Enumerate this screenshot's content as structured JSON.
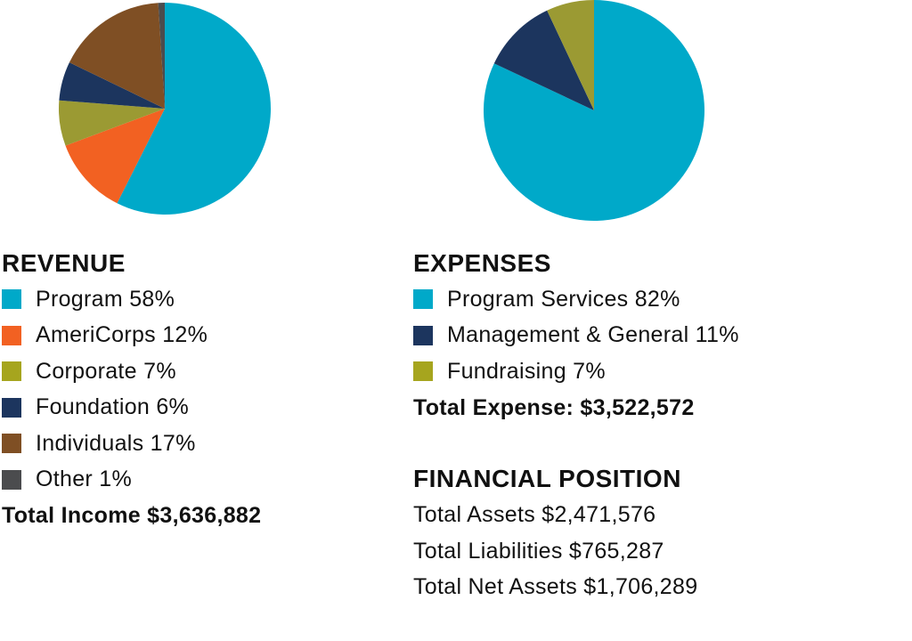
{
  "chart_data": [
    {
      "type": "pie",
      "title": "REVENUE",
      "categories": [
        "Program",
        "AmeriCorps",
        "Corporate",
        "Foundation",
        "Individuals",
        "Other"
      ],
      "values": [
        58,
        12,
        7,
        6,
        17,
        1
      ],
      "unit": "%",
      "colors": [
        "#00a9c9",
        "#f26122",
        "#9b9a33",
        "#1c355e",
        "#7f4f24",
        "#4b4c4e"
      ],
      "legend": [
        {
          "label": "Program 58%",
          "color": "#00a9c9"
        },
        {
          "label": "AmeriCorps 12%",
          "color": "#f26122"
        },
        {
          "label": "Corporate 7%",
          "color": "#a6a51e"
        },
        {
          "label": "Foundation 6%",
          "color": "#1c355e"
        },
        {
          "label": "Individuals 17%",
          "color": "#7f4f24"
        },
        {
          "label": "Other 1%",
          "color": "#4b4c4e"
        }
      ],
      "total_text": "Total Income $3,636,882",
      "legend_placement": "bottom"
    },
    {
      "type": "pie",
      "title": "EXPENSES",
      "categories": [
        "Program Services",
        "Management & General",
        "Fundraising"
      ],
      "values": [
        82,
        11,
        7
      ],
      "unit": "%",
      "colors": [
        "#00a9c9",
        "#1c355e",
        "#9b9a33"
      ],
      "legend": [
        {
          "label": "Program Services 82%",
          "color": "#00a9c9"
        },
        {
          "label": "Management & General 11%",
          "color": "#1c355e"
        },
        {
          "label": "Fundraising 7%",
          "color": "#a6a51e"
        }
      ],
      "total_text": "Total Expense: $3,522,572",
      "legend_placement": "bottom"
    }
  ],
  "financial_position": {
    "title": "FINANCIAL POSITION",
    "lines": [
      "Total Assets $2,471,576",
      "Total Liabilities $765,287",
      "Total Net Assets $1,706,289"
    ]
  }
}
